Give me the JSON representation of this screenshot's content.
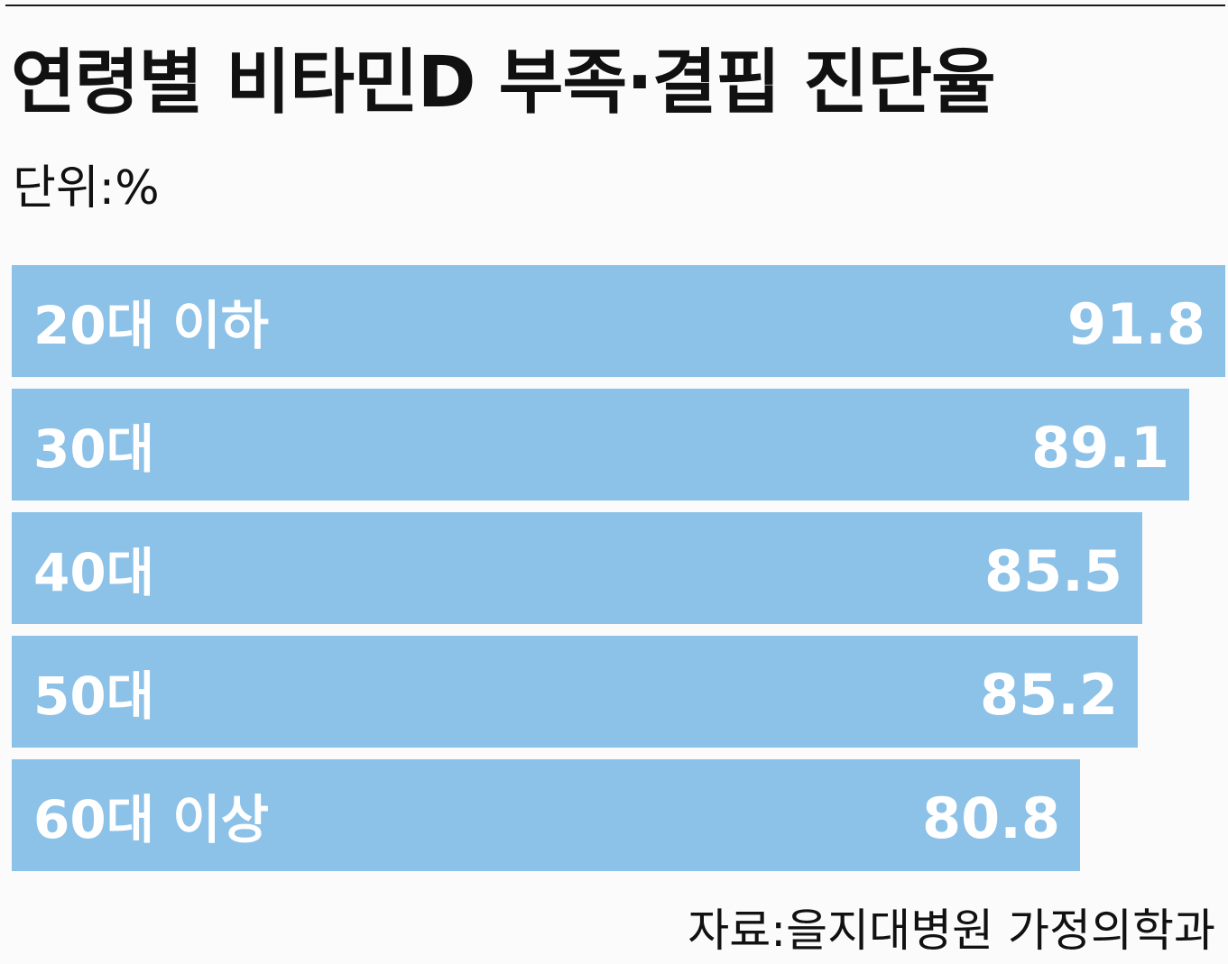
{
  "chart_data": {
    "type": "bar",
    "orientation": "horizontal",
    "title": "연령별 비타민D 부족·결핍 진단율",
    "unit_label": "단위:%",
    "categories": [
      "20대 이하",
      "30대",
      "40대",
      "50대",
      "60대 이상"
    ],
    "values": [
      91.8,
      89.1,
      85.5,
      85.2,
      80.8
    ],
    "value_labels": [
      "91.8",
      "89.1",
      "85.5",
      "85.2",
      "80.8"
    ],
    "xlim": [
      0,
      91.8
    ],
    "grid": false,
    "bar_color": "#8cc1e8",
    "source": "자료:을지대병원 가정의학과"
  }
}
